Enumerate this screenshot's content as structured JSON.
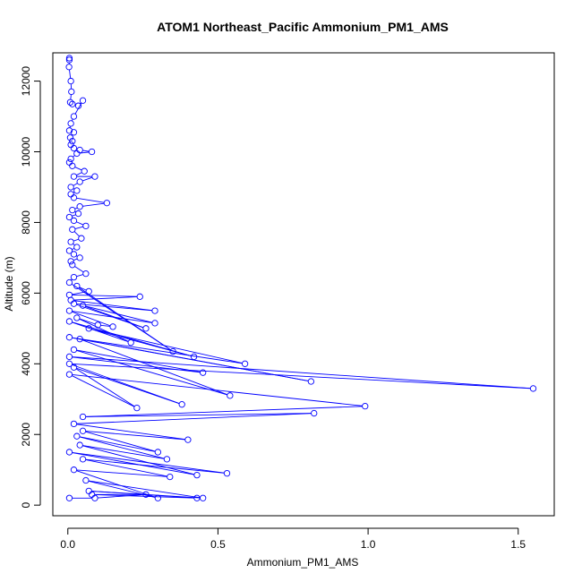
{
  "chart_data": {
    "type": "line",
    "title": "ATOM1 Northeast_Pacific Ammonium_PM1_AMS",
    "xlabel": "Ammonium_PM1_AMS",
    "ylabel": "Altitude (m)",
    "xlim": [
      -0.05,
      1.62
    ],
    "ylim": [
      -300,
      12800
    ],
    "xticks": [
      0,
      0.5,
      1,
      1.5
    ],
    "xtick_labels": [
      "0.0",
      "0.5",
      "1.0",
      "1.5"
    ],
    "yticks": [
      0,
      2000,
      4000,
      6000,
      8000,
      10000,
      12000
    ],
    "ytick_labels": [
      "0",
      "2000",
      "4000",
      "6000",
      "8000",
      "10000",
      "12000"
    ],
    "grid": false,
    "series": [
      {
        "color": "#0000ff",
        "points": [
          [
            0.005,
            12650
          ],
          [
            0.005,
            12600
          ],
          [
            0.004,
            12400
          ],
          [
            0.01,
            12000
          ],
          [
            0.012,
            11700
          ],
          [
            0.008,
            11400
          ],
          [
            0.015,
            11350
          ],
          [
            0.035,
            11300
          ],
          [
            0.05,
            11450
          ],
          [
            0.02,
            11000
          ],
          [
            0.01,
            10800
          ],
          [
            0.005,
            10600
          ],
          [
            0.02,
            10550
          ],
          [
            0.008,
            10400
          ],
          [
            0.015,
            10300
          ],
          [
            0.01,
            10200
          ],
          [
            0.02,
            10100
          ],
          [
            0.04,
            10050
          ],
          [
            0.08,
            10000
          ],
          [
            0.03,
            9950
          ],
          [
            0.01,
            9800
          ],
          [
            0.005,
            9700
          ],
          [
            0.015,
            9600
          ],
          [
            0.055,
            9450
          ],
          [
            0.02,
            9300
          ],
          [
            0.09,
            9300
          ],
          [
            0.04,
            9150
          ],
          [
            0.01,
            9000
          ],
          [
            0.03,
            8900
          ],
          [
            0.01,
            8800
          ],
          [
            0.02,
            8700
          ],
          [
            0.13,
            8550
          ],
          [
            0.04,
            8450
          ],
          [
            0.015,
            8350
          ],
          [
            0.035,
            8250
          ],
          [
            0.005,
            8150
          ],
          [
            0.02,
            8050
          ],
          [
            0.06,
            7900
          ],
          [
            0.015,
            7800
          ],
          [
            0.045,
            7550
          ],
          [
            0.01,
            7450
          ],
          [
            0.03,
            7300
          ],
          [
            0.005,
            7200
          ],
          [
            0.02,
            7100
          ],
          [
            0.04,
            7000
          ],
          [
            0.01,
            6900
          ],
          [
            0.015,
            6800
          ],
          [
            0.06,
            6550
          ],
          [
            0.02,
            6450
          ],
          [
            0.005,
            6300
          ],
          [
            0.35,
            4350
          ],
          [
            0.03,
            6200
          ],
          [
            0.07,
            6050
          ],
          [
            0.005,
            5950
          ],
          [
            0.24,
            5900
          ],
          [
            0.01,
            5800
          ],
          [
            0.29,
            5500
          ],
          [
            0.02,
            5700
          ],
          [
            0.26,
            5000
          ],
          [
            0.05,
            5650
          ],
          [
            0.29,
            5150
          ],
          [
            0.005,
            5500
          ],
          [
            0.15,
            5050
          ],
          [
            0.1,
            5100
          ],
          [
            0.03,
            5300
          ],
          [
            0.21,
            4600
          ],
          [
            0.005,
            5200
          ],
          [
            0.42,
            4200
          ],
          [
            0.07,
            5000
          ],
          [
            0.59,
            4000
          ],
          [
            0.005,
            4750
          ],
          [
            0.81,
            3500
          ],
          [
            0.04,
            4700
          ],
          [
            0.54,
            3100
          ],
          [
            0.02,
            4400
          ],
          [
            0.45,
            3750
          ],
          [
            0.005,
            4200
          ],
          [
            1.55,
            3300
          ],
          [
            0.005,
            4000
          ],
          [
            0.38,
            2850
          ],
          [
            0.02,
            3900
          ],
          [
            0.23,
            2750
          ],
          [
            0.005,
            3700
          ],
          [
            0.99,
            2800
          ],
          [
            0.05,
            2500
          ],
          [
            0.82,
            2600
          ],
          [
            0.02,
            2300
          ],
          [
            0.4,
            1850
          ],
          [
            0.05,
            2100
          ],
          [
            0.3,
            1500
          ],
          [
            0.03,
            1950
          ],
          [
            0.33,
            1300
          ],
          [
            0.04,
            1700
          ],
          [
            0.43,
            850
          ],
          [
            0.005,
            1500
          ],
          [
            0.53,
            900
          ],
          [
            0.05,
            1300
          ],
          [
            0.34,
            800
          ],
          [
            0.02,
            1000
          ],
          [
            0.3,
            200
          ],
          [
            0.06,
            700
          ],
          [
            0.45,
            200
          ],
          [
            0.07,
            400
          ],
          [
            0.43,
            200
          ],
          [
            0.08,
            300
          ],
          [
            0.26,
            300
          ],
          [
            0.09,
            200
          ],
          [
            0.005,
            200
          ]
        ]
      }
    ]
  }
}
